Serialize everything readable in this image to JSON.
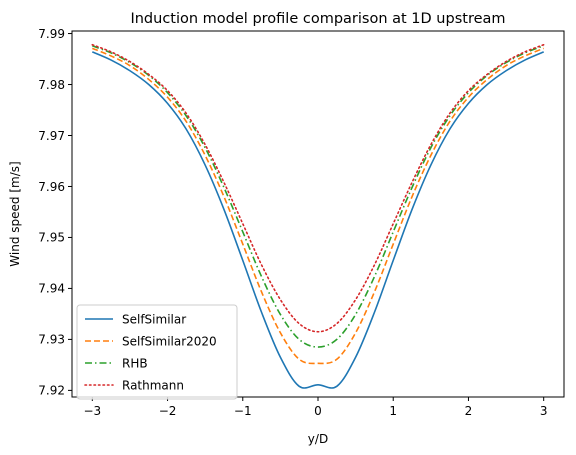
{
  "chart_data": {
    "type": "line",
    "title": "Induction model profile comparison at 1D upstream",
    "xlabel": "y/D",
    "ylabel": "Wind speed [m/s]",
    "xlim": [
      -3.27,
      3.27
    ],
    "ylim": [
      7.9187,
      7.9905
    ],
    "xticks": [
      -3,
      -2,
      -1,
      0,
      1,
      2,
      3
    ],
    "xtick_labels": [
      "−3",
      "−2",
      "−1",
      "0",
      "1",
      "2",
      "3"
    ],
    "yticks": [
      7.92,
      7.93,
      7.94,
      7.95,
      7.96,
      7.97,
      7.98,
      7.99
    ],
    "ytick_labels": [
      "7.92",
      "7.93",
      "7.94",
      "7.95",
      "7.96",
      "7.97",
      "7.98",
      "7.99"
    ],
    "grid": false,
    "legend_position": "lower-left",
    "x": [
      -3.0,
      -2.75,
      -2.5,
      -2.25,
      -2.0,
      -1.75,
      -1.5,
      -1.25,
      -1.0,
      -0.75,
      -0.5,
      -0.25,
      0.0,
      0.25,
      0.5,
      0.75,
      1.0,
      1.25,
      1.5,
      1.75,
      2.0,
      2.25,
      2.5,
      2.75,
      3.0
    ],
    "series": [
      {
        "name": "SelfSimilar",
        "color": "#1f77b4",
        "dash": "solid",
        "values": [
          7.9864,
          7.9848,
          7.9827,
          7.98,
          7.9763,
          7.9712,
          7.9642,
          7.9555,
          7.9455,
          7.9353,
          7.9265,
          7.9208,
          7.9211,
          7.9208,
          7.9265,
          7.9353,
          7.9455,
          7.9555,
          7.9642,
          7.9712,
          7.9763,
          7.98,
          7.9827,
          7.9848,
          7.9864
        ]
      },
      {
        "name": "SelfSimilar2020",
        "color": "#ff7f0e",
        "dash": "dashed",
        "values": [
          7.9871,
          7.9856,
          7.9837,
          7.981,
          7.9775,
          7.9727,
          7.9661,
          7.958,
          7.9487,
          7.9393,
          7.9313,
          7.9261,
          7.9253,
          7.9261,
          7.9313,
          7.9393,
          7.9487,
          7.958,
          7.9661,
          7.9727,
          7.9775,
          7.981,
          7.9837,
          7.9856,
          7.9871
        ]
      },
      {
        "name": "RHB",
        "color": "#2ca02c",
        "dash": "dashdot",
        "values": [
          7.9876,
          7.9862,
          7.9843,
          7.9818,
          7.9784,
          7.9738,
          7.9676,
          7.9598,
          7.9511,
          7.9423,
          7.9349,
          7.93,
          7.9285,
          7.93,
          7.9349,
          7.9423,
          7.9511,
          7.9598,
          7.9676,
          7.9738,
          7.9784,
          7.9818,
          7.9843,
          7.9862,
          7.9876
        ]
      },
      {
        "name": "Rathmann",
        "color": "#d62728",
        "dash": "dotted",
        "values": [
          7.9878,
          7.9864,
          7.9845,
          7.982,
          7.9788,
          7.9743,
          7.9682,
          7.9608,
          7.9527,
          7.9446,
          7.9378,
          7.9331,
          7.9315,
          7.9331,
          7.9378,
          7.9446,
          7.9527,
          7.9608,
          7.9682,
          7.9743,
          7.9788,
          7.982,
          7.9845,
          7.9864,
          7.9878
        ]
      }
    ]
  }
}
